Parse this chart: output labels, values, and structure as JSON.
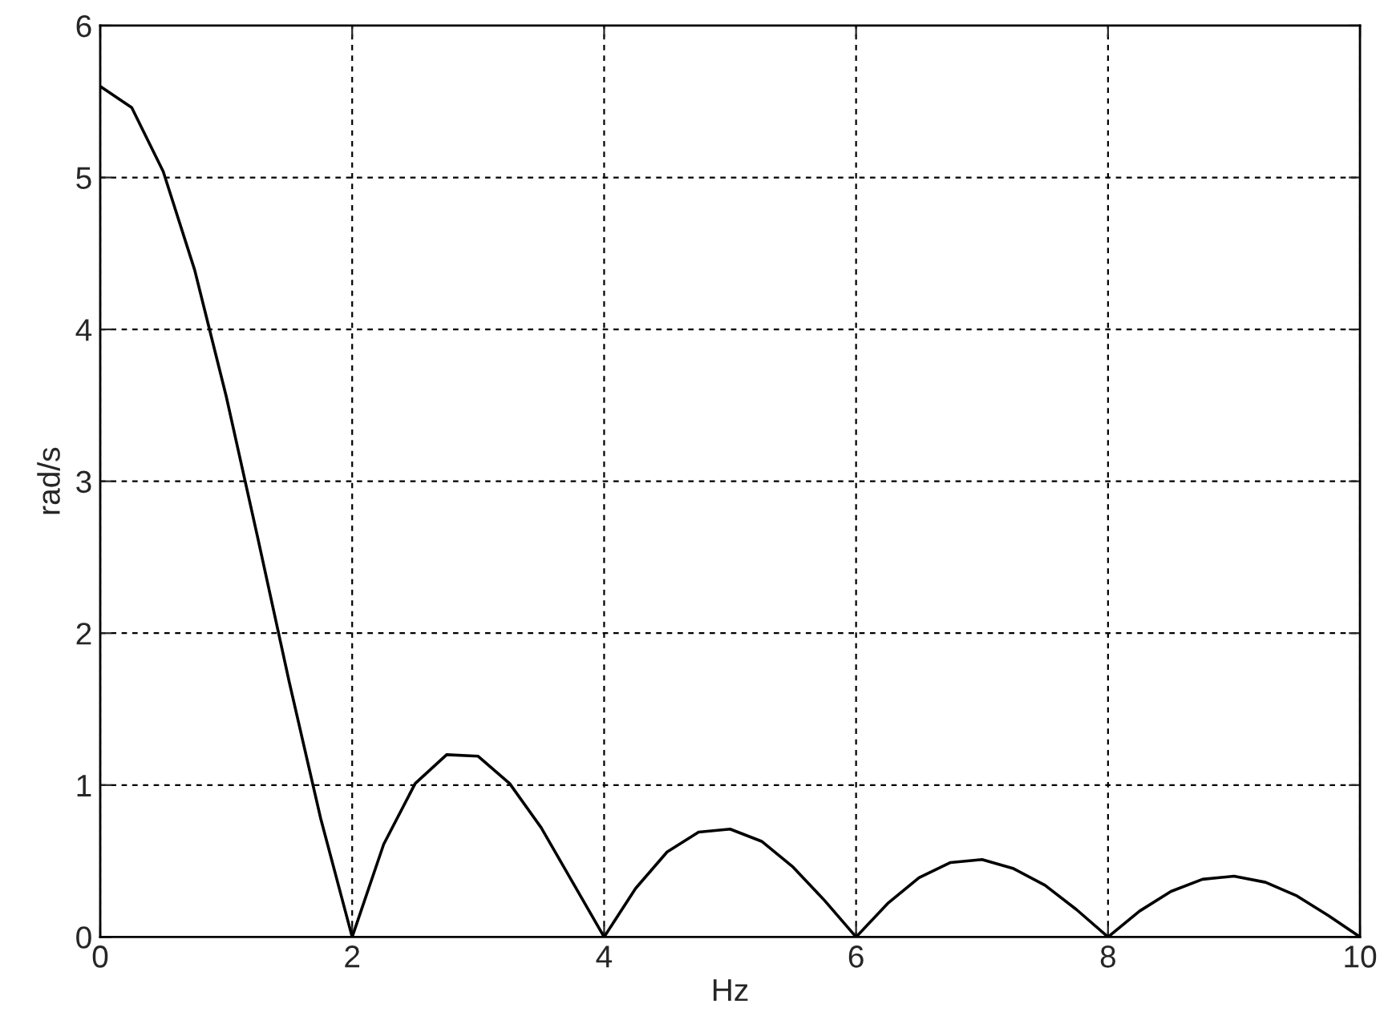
{
  "chart_data": {
    "type": "line",
    "xlabel": "Hz",
    "ylabel": "rad/s",
    "x": [
      0,
      0.25,
      0.5,
      0.75,
      1,
      1.25,
      1.5,
      1.75,
      2,
      2.25,
      2.5,
      2.75,
      3,
      3.25,
      3.5,
      3.75,
      4,
      4.25,
      4.5,
      4.75,
      5,
      5.25,
      5.5,
      5.75,
      6,
      6.25,
      6.5,
      6.75,
      7,
      7.25,
      7.5,
      7.75,
      8,
      8.25,
      8.5,
      8.75,
      9,
      9.25,
      9.5,
      9.75,
      10
    ],
    "series": [
      {
        "color": "#000000",
        "values": [
          5.6,
          5.46,
          5.04,
          4.39,
          3.56,
          2.63,
          1.68,
          0.78,
          0,
          0.61,
          1.01,
          1.2,
          1.19,
          1.01,
          0.72,
          0.36,
          0,
          0.32,
          0.56,
          0.69,
          0.71,
          0.63,
          0.46,
          0.24,
          0,
          0.22,
          0.39,
          0.49,
          0.51,
          0.45,
          0.34,
          0.18,
          0,
          0.17,
          0.3,
          0.38,
          0.4,
          0.36,
          0.27,
          0.14,
          0
        ]
      }
    ],
    "xlim": [
      0,
      10
    ],
    "xticks": [
      0,
      2,
      4,
      6,
      8,
      10
    ],
    "ylim": [
      0,
      6
    ],
    "yticks": [
      0,
      1,
      2,
      3,
      4,
      5,
      6
    ],
    "grid": true,
    "line_style": "solid"
  }
}
